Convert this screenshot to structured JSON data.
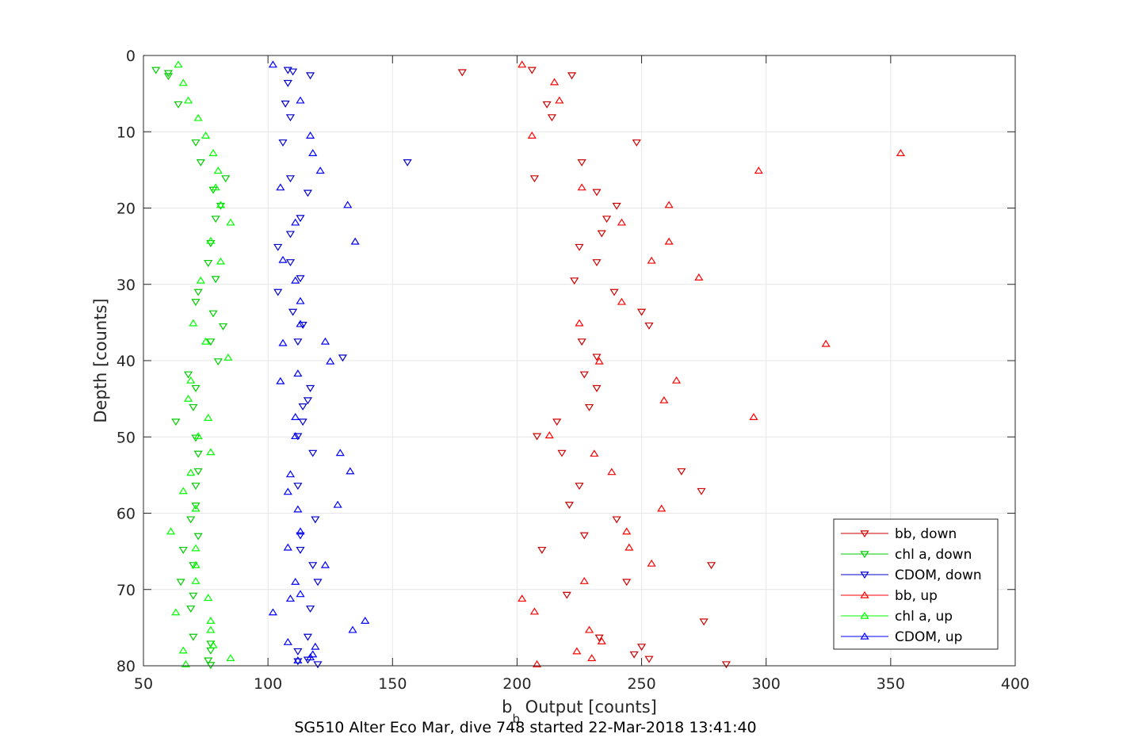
{
  "caption": "SG510 Alter Eco Mar, dive 748 started 22-Mar-2018 13:41:40",
  "chart_data": {
    "type": "scatter",
    "title": "",
    "xlabel_main": "b",
    "xlabel_sub": "b",
    "xlabel_rest": " Output [counts]",
    "ylabel": "Depth [counts]",
    "xlim": [
      50,
      400
    ],
    "ylim": [
      0,
      80
    ],
    "y_reversed": true,
    "grid": true,
    "legend_position": "bottom-right",
    "x_ticks": [
      "50",
      "100",
      "150",
      "200",
      "250",
      "300",
      "350",
      "400"
    ],
    "y_ticks": [
      "0",
      "10",
      "20",
      "30",
      "40",
      "50",
      "60",
      "70",
      "80"
    ],
    "series": [
      {
        "name": "bb, down",
        "color": "#cc0000",
        "marker": "triangle-down",
        "points": [
          [
            178,
            2.2
          ],
          [
            206,
            1.9
          ],
          [
            222,
            2.6
          ],
          [
            212,
            6.4
          ],
          [
            214,
            8.1
          ],
          [
            248,
            11.4
          ],
          [
            226,
            14.0
          ],
          [
            207,
            16.1
          ],
          [
            232,
            17.9
          ],
          [
            240,
            19.7
          ],
          [
            236,
            21.4
          ],
          [
            234,
            23.3
          ],
          [
            225,
            25.1
          ],
          [
            232,
            27.1
          ],
          [
            223,
            29.5
          ],
          [
            239,
            31.0
          ],
          [
            250,
            33.6
          ],
          [
            253,
            35.4
          ],
          [
            226,
            37.5
          ],
          [
            232,
            39.5
          ],
          [
            227,
            41.8
          ],
          [
            232,
            43.6
          ],
          [
            229,
            46.1
          ],
          [
            216,
            48.0
          ],
          [
            208,
            49.9
          ],
          [
            218,
            52.1
          ],
          [
            266,
            54.5
          ],
          [
            225,
            56.4
          ],
          [
            274,
            57.1
          ],
          [
            221,
            58.9
          ],
          [
            240,
            60.8
          ],
          [
            227,
            62.9
          ],
          [
            210,
            64.8
          ],
          [
            278,
            66.8
          ],
          [
            244,
            69.0
          ],
          [
            220,
            70.7
          ],
          [
            275,
            74.2
          ],
          [
            233,
            76.3
          ],
          [
            250,
            77.5
          ],
          [
            247,
            78.5
          ],
          [
            253,
            79.1
          ],
          [
            284,
            79.8
          ]
        ]
      },
      {
        "name": "chl a, down",
        "color": "#00cc00",
        "marker": "triangle-down",
        "points": [
          [
            55,
            1.9
          ],
          [
            60,
            2.3
          ],
          [
            60,
            2.7
          ],
          [
            64,
            6.4
          ],
          [
            71,
            11.4
          ],
          [
            73,
            14.0
          ],
          [
            83,
            16.1
          ],
          [
            78,
            17.6
          ],
          [
            81,
            19.7
          ],
          [
            79,
            21.4
          ],
          [
            77,
            24.6
          ],
          [
            76,
            27.2
          ],
          [
            79,
            29.3
          ],
          [
            72,
            31.0
          ],
          [
            71,
            32.3
          ],
          [
            78,
            33.8
          ],
          [
            82,
            35.5
          ],
          [
            77,
            37.5
          ],
          [
            80,
            40.1
          ],
          [
            68,
            41.8
          ],
          [
            71,
            43.6
          ],
          [
            70,
            46.1
          ],
          [
            63,
            48.0
          ],
          [
            71,
            50.1
          ],
          [
            72,
            52.2
          ],
          [
            72,
            54.5
          ],
          [
            71,
            56.4
          ],
          [
            71,
            59.0
          ],
          [
            69,
            60.8
          ],
          [
            72,
            63.0
          ],
          [
            66,
            64.8
          ],
          [
            70,
            66.8
          ],
          [
            65,
            69.0
          ],
          [
            70,
            70.8
          ],
          [
            69,
            72.5
          ],
          [
            70,
            76.2
          ],
          [
            77,
            77.1
          ],
          [
            77,
            78.0
          ],
          [
            76,
            79.3
          ],
          [
            77,
            79.9
          ]
        ]
      },
      {
        "name": "CDOM, down",
        "color": "#0000cc",
        "marker": "triangle-down",
        "points": [
          [
            108,
            1.9
          ],
          [
            110,
            2.1
          ],
          [
            117,
            2.6
          ],
          [
            108,
            3.6
          ],
          [
            107,
            6.3
          ],
          [
            109,
            8.1
          ],
          [
            106,
            11.4
          ],
          [
            156,
            14.0
          ],
          [
            109,
            16.1
          ],
          [
            116,
            18.0
          ],
          [
            113,
            21.3
          ],
          [
            109,
            23.4
          ],
          [
            104,
            25.1
          ],
          [
            109,
            27.1
          ],
          [
            113,
            29.2
          ],
          [
            104,
            31.0
          ],
          [
            110,
            33.6
          ],
          [
            114,
            35.3
          ],
          [
            112,
            37.5
          ],
          [
            130,
            39.6
          ],
          [
            117,
            43.6
          ],
          [
            116,
            45.2
          ],
          [
            114,
            46.0
          ],
          [
            114,
            48.0
          ],
          [
            112,
            49.9
          ],
          [
            118,
            52.1
          ],
          [
            112,
            56.4
          ],
          [
            119,
            60.8
          ],
          [
            113,
            62.9
          ],
          [
            113,
            64.8
          ],
          [
            118,
            66.8
          ],
          [
            120,
            69.0
          ],
          [
            117,
            72.5
          ],
          [
            116,
            76.2
          ],
          [
            112,
            78.1
          ],
          [
            116,
            79.2
          ],
          [
            112,
            79.4
          ],
          [
            120,
            79.8
          ]
        ]
      },
      {
        "name": "bb, up",
        "color": "#ff0000",
        "marker": "triangle-up",
        "points": [
          [
            202,
            1.2
          ],
          [
            215,
            3.5
          ],
          [
            217,
            5.9
          ],
          [
            206,
            10.5
          ],
          [
            354,
            12.8
          ],
          [
            297,
            15.1
          ],
          [
            226,
            17.3
          ],
          [
            261,
            19.6
          ],
          [
            242,
            21.9
          ],
          [
            261,
            24.4
          ],
          [
            254,
            26.9
          ],
          [
            273,
            29.1
          ],
          [
            242,
            32.3
          ],
          [
            225,
            35.1
          ],
          [
            324,
            37.8
          ],
          [
            233,
            40.1
          ],
          [
            264,
            42.6
          ],
          [
            259,
            45.2
          ],
          [
            295,
            47.4
          ],
          [
            213,
            49.8
          ],
          [
            231,
            52.2
          ],
          [
            238,
            54.6
          ],
          [
            258,
            59.4
          ],
          [
            244,
            62.4
          ],
          [
            245,
            64.5
          ],
          [
            254,
            66.6
          ],
          [
            227,
            68.9
          ],
          [
            202,
            71.2
          ],
          [
            207,
            72.9
          ],
          [
            229,
            75.3
          ],
          [
            234,
            76.8
          ],
          [
            224,
            78.1
          ],
          [
            230,
            79.0
          ],
          [
            208,
            79.8
          ]
        ]
      },
      {
        "name": "chl a, up",
        "color": "#00ff00",
        "marker": "triangle-up",
        "points": [
          [
            64,
            1.2
          ],
          [
            66,
            3.6
          ],
          [
            68,
            5.9
          ],
          [
            72,
            8.2
          ],
          [
            75,
            10.5
          ],
          [
            78,
            12.8
          ],
          [
            80,
            15.1
          ],
          [
            79,
            17.3
          ],
          [
            81,
            19.6
          ],
          [
            85,
            21.9
          ],
          [
            77,
            24.3
          ],
          [
            81,
            27.0
          ],
          [
            73,
            29.5
          ],
          [
            70,
            35.1
          ],
          [
            75,
            37.5
          ],
          [
            84,
            39.6
          ],
          [
            69,
            42.6
          ],
          [
            68,
            45.0
          ],
          [
            76,
            47.5
          ],
          [
            72,
            49.9
          ],
          [
            77,
            52.0
          ],
          [
            69,
            54.7
          ],
          [
            66,
            57.1
          ],
          [
            71,
            59.4
          ],
          [
            61,
            62.4
          ],
          [
            71,
            64.6
          ],
          [
            71,
            66.8
          ],
          [
            71,
            68.9
          ],
          [
            76,
            71.1
          ],
          [
            63,
            73.0
          ],
          [
            77,
            74.1
          ],
          [
            77,
            75.3
          ],
          [
            78,
            77.3
          ],
          [
            66,
            78.0
          ],
          [
            85,
            79.0
          ],
          [
            67,
            79.8
          ]
        ]
      },
      {
        "name": "CDOM, up",
        "color": "#0000ff",
        "marker": "triangle-up",
        "points": [
          [
            102,
            1.2
          ],
          [
            113,
            5.9
          ],
          [
            117,
            10.5
          ],
          [
            118,
            12.8
          ],
          [
            121,
            15.1
          ],
          [
            105,
            17.3
          ],
          [
            132,
            19.6
          ],
          [
            111,
            21.9
          ],
          [
            135,
            24.4
          ],
          [
            106,
            26.8
          ],
          [
            111,
            29.5
          ],
          [
            113,
            32.2
          ],
          [
            113,
            35.2
          ],
          [
            106,
            37.7
          ],
          [
            123,
            37.5
          ],
          [
            125,
            40.1
          ],
          [
            112,
            41.7
          ],
          [
            105,
            42.7
          ],
          [
            111,
            47.4
          ],
          [
            111,
            49.9
          ],
          [
            129,
            52.1
          ],
          [
            133,
            54.5
          ],
          [
            109,
            54.9
          ],
          [
            108,
            57.2
          ],
          [
            112,
            59.5
          ],
          [
            128,
            58.9
          ],
          [
            113,
            62.4
          ],
          [
            108,
            64.5
          ],
          [
            123,
            66.8
          ],
          [
            111,
            69.0
          ],
          [
            109,
            71.2
          ],
          [
            113,
            70.6
          ],
          [
            102,
            73.0
          ],
          [
            139,
            74.1
          ],
          [
            134,
            75.3
          ],
          [
            108,
            76.9
          ],
          [
            119,
            77.5
          ],
          [
            118,
            78.5
          ],
          [
            112,
            79.3
          ],
          [
            117,
            78.9
          ]
        ]
      }
    ]
  }
}
